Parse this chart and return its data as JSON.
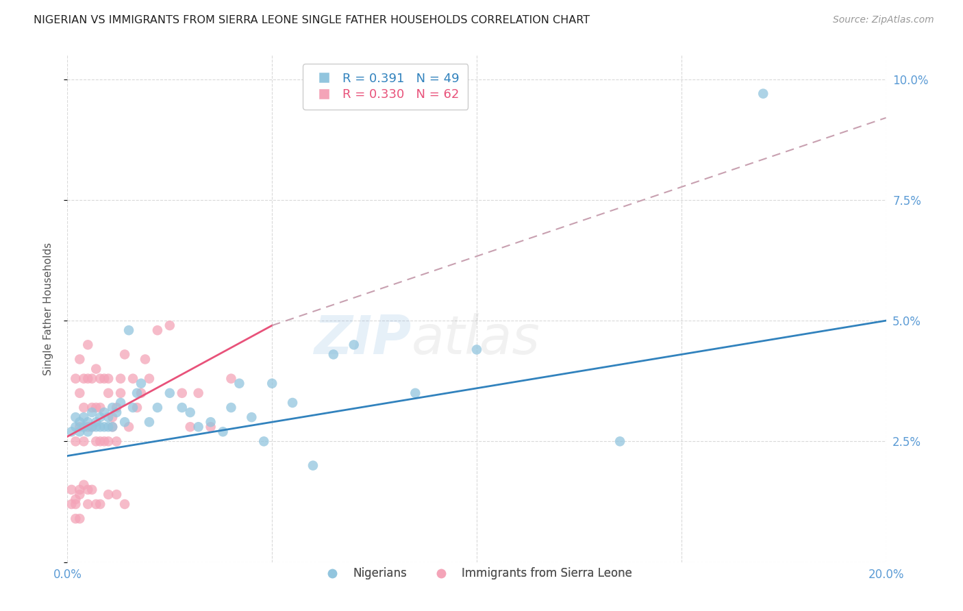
{
  "title": "NIGERIAN VS IMMIGRANTS FROM SIERRA LEONE SINGLE FATHER HOUSEHOLDS CORRELATION CHART",
  "source": "Source: ZipAtlas.com",
  "ylabel": "Single Father Households",
  "xlim": [
    0.0,
    0.2
  ],
  "ylim": [
    0.0,
    0.105
  ],
  "xticks": [
    0.0,
    0.05,
    0.1,
    0.15,
    0.2
  ],
  "xticklabels": [
    "0.0%",
    "",
    "",
    "",
    "20.0%"
  ],
  "yticks_right": [
    0.025,
    0.05,
    0.075,
    0.1
  ],
  "yticklabels_right": [
    "2.5%",
    "5.0%",
    "7.5%",
    "10.0%"
  ],
  "watermark_text": "ZIPatlas",
  "blue_scatter_color": "#92c5de",
  "pink_scatter_color": "#f4a4b8",
  "blue_line_color": "#3182bd",
  "pink_line_color": "#e8527a",
  "pink_dash_color": "#c8a0b0",
  "legend_R_blue": "0.391",
  "legend_N_blue": "49",
  "legend_R_pink": "0.330",
  "legend_N_pink": "62",
  "legend_label_blue": "Nigerians",
  "legend_label_pink": "Immigrants from Sierra Leone",
  "title_color": "#222222",
  "tick_color": "#5b9bd5",
  "grid_color": "#d0d0d0",
  "blue_line_start_y": 0.022,
  "blue_line_end_y": 0.05,
  "pink_line_start_y": 0.026,
  "pink_line_solid_end_x": 0.05,
  "pink_line_solid_end_y": 0.049,
  "pink_line_dash_end_x": 0.2,
  "pink_line_dash_end_y": 0.092,
  "nigerian_x": [
    0.001,
    0.002,
    0.002,
    0.003,
    0.003,
    0.004,
    0.004,
    0.005,
    0.005,
    0.006,
    0.006,
    0.007,
    0.007,
    0.008,
    0.008,
    0.009,
    0.009,
    0.01,
    0.01,
    0.011,
    0.011,
    0.012,
    0.013,
    0.014,
    0.015,
    0.016,
    0.017,
    0.018,
    0.02,
    0.022,
    0.025,
    0.028,
    0.03,
    0.032,
    0.035,
    0.038,
    0.04,
    0.042,
    0.045,
    0.048,
    0.05,
    0.055,
    0.06,
    0.065,
    0.07,
    0.085,
    0.1,
    0.135,
    0.17
  ],
  "nigerian_y": [
    0.027,
    0.028,
    0.03,
    0.027,
    0.029,
    0.028,
    0.03,
    0.027,
    0.029,
    0.028,
    0.031,
    0.029,
    0.028,
    0.03,
    0.028,
    0.031,
    0.028,
    0.03,
    0.028,
    0.032,
    0.028,
    0.031,
    0.033,
    0.029,
    0.048,
    0.032,
    0.035,
    0.037,
    0.029,
    0.032,
    0.035,
    0.032,
    0.031,
    0.028,
    0.029,
    0.027,
    0.032,
    0.037,
    0.03,
    0.025,
    0.037,
    0.033,
    0.02,
    0.043,
    0.045,
    0.035,
    0.044,
    0.025,
    0.097
  ],
  "sierraleone_x": [
    0.001,
    0.001,
    0.002,
    0.002,
    0.002,
    0.003,
    0.003,
    0.003,
    0.003,
    0.004,
    0.004,
    0.004,
    0.005,
    0.005,
    0.005,
    0.005,
    0.006,
    0.006,
    0.006,
    0.007,
    0.007,
    0.007,
    0.008,
    0.008,
    0.008,
    0.009,
    0.009,
    0.01,
    0.01,
    0.01,
    0.011,
    0.011,
    0.012,
    0.012,
    0.013,
    0.013,
    0.014,
    0.015,
    0.016,
    0.017,
    0.018,
    0.019,
    0.02,
    0.022,
    0.025,
    0.028,
    0.03,
    0.032,
    0.035,
    0.04,
    0.002,
    0.003,
    0.004,
    0.005,
    0.006,
    0.007,
    0.008,
    0.01,
    0.012,
    0.014,
    0.002,
    0.003
  ],
  "sierraleone_y": [
    0.015,
    0.012,
    0.038,
    0.025,
    0.013,
    0.035,
    0.028,
    0.042,
    0.015,
    0.032,
    0.025,
    0.038,
    0.038,
    0.045,
    0.028,
    0.015,
    0.038,
    0.028,
    0.032,
    0.025,
    0.04,
    0.032,
    0.025,
    0.038,
    0.032,
    0.025,
    0.038,
    0.035,
    0.025,
    0.038,
    0.03,
    0.028,
    0.032,
    0.025,
    0.035,
    0.038,
    0.043,
    0.028,
    0.038,
    0.032,
    0.035,
    0.042,
    0.038,
    0.048,
    0.049,
    0.035,
    0.028,
    0.035,
    0.028,
    0.038,
    0.012,
    0.014,
    0.016,
    0.012,
    0.015,
    0.012,
    0.012,
    0.014,
    0.014,
    0.012,
    0.009,
    0.009
  ]
}
